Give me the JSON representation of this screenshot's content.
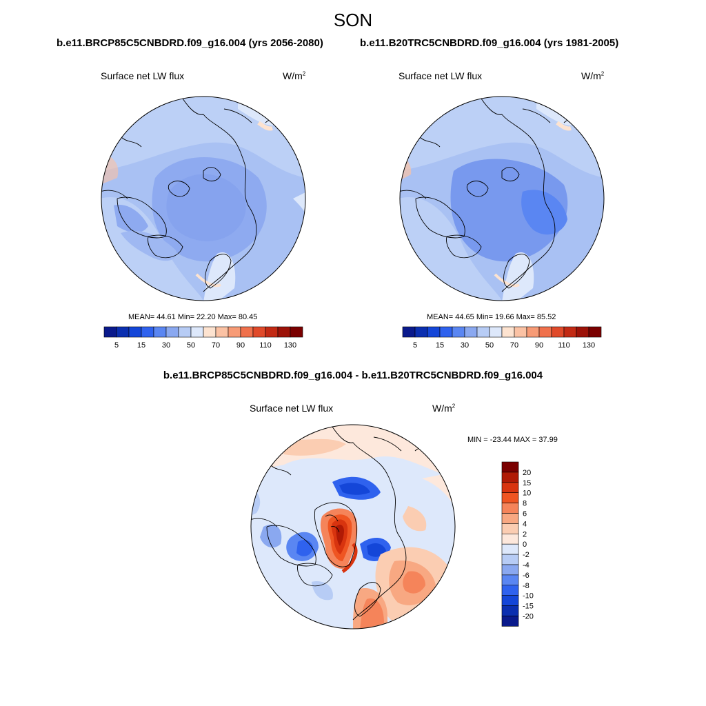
{
  "season": "SON",
  "cases": {
    "left": "b.e11.BRCP85C5CNBDRD.f09_g16.004 (yrs 2056-2080)",
    "right": "b.e11.B20TRC5CNBDRD.f09_g16.004 (yrs 1981-2005)"
  },
  "diff_title": "b.e11.BRCP85C5CNBDRD.f09_g16.004 - b.e11.B20TRC5CNBDRD.f09_g16.004",
  "panels": [
    {
      "variable": "Surface net LW flux",
      "units": "W/m",
      "units_sup": "2",
      "stats": "MEAN=  44.61  Min=  22.20  Max=  80.45"
    },
    {
      "variable": "Surface net LW flux",
      "units": "W/m",
      "units_sup": "2",
      "stats": "MEAN=  44.65  Min=  19.66  Max=  85.52"
    },
    {
      "variable": "Surface net LW flux",
      "units": "W/m",
      "units_sup": "2",
      "stats": "MIN = -23.44 MAX =  37.99"
    }
  ],
  "colorbar_abs": {
    "labels": [
      "5",
      "15",
      "30",
      "50",
      "70",
      "90",
      "110",
      "130"
    ],
    "colors": [
      "#0a1a8c",
      "#0b2fb0",
      "#1446d8",
      "#2f62ee",
      "#5a86f2",
      "#8aa8f0",
      "#b7ccf5",
      "#dde8fb",
      "#fde3d0",
      "#fbc2a4",
      "#f79b76",
      "#f0714c",
      "#e04a2a",
      "#c22a14",
      "#9c1208",
      "#7a0000"
    ]
  },
  "colorbar_diff": {
    "labels": [
      "20",
      "15",
      "10",
      "8",
      "6",
      "4",
      "2",
      "0",
      "-2",
      "-4",
      "-6",
      "-8",
      "-10",
      "-15",
      "-20"
    ],
    "colors": [
      "#7a0000",
      "#b01a05",
      "#d8340f",
      "#ef5522",
      "#f5845a",
      "#f8a882",
      "#fbcdb2",
      "#fde8dc",
      "#dde8fb",
      "#b7ccf5",
      "#8aa8f0",
      "#5a86f2",
      "#2f62ee",
      "#1446d8",
      "#0b2fb0",
      "#0a1a8c"
    ]
  },
  "chart_data": [
    {
      "type": "heatmap",
      "title": "Surface net LW flux",
      "subtitle": "b.e11.BRCP85C5CNBDRD.f09_g16.004 (yrs 2056-2080)",
      "units": "W/m2",
      "mean": 44.61,
      "min": 22.2,
      "max": 80.45,
      "levels": [
        5,
        15,
        30,
        50,
        70,
        90,
        110,
        130
      ]
    },
    {
      "type": "heatmap",
      "title": "Surface net LW flux",
      "subtitle": "b.e11.B20TRC5CNBDRD.f09_g16.004 (yrs 1981-2005)",
      "units": "W/m2",
      "mean": 44.65,
      "min": 19.66,
      "max": 85.52,
      "levels": [
        5,
        15,
        30,
        50,
        70,
        90,
        110,
        130
      ]
    },
    {
      "type": "heatmap",
      "title": "Surface net LW flux",
      "subtitle": "b.e11.BRCP85C5CNBDRD.f09_g16.004 - b.e11.B20TRC5CNBDRD.f09_g16.004",
      "units": "W/m2",
      "min": -23.44,
      "max": 37.99,
      "levels": [
        -20,
        -15,
        -10,
        -8,
        -6,
        -4,
        -2,
        0,
        2,
        4,
        6,
        8,
        10,
        15,
        20
      ]
    }
  ]
}
